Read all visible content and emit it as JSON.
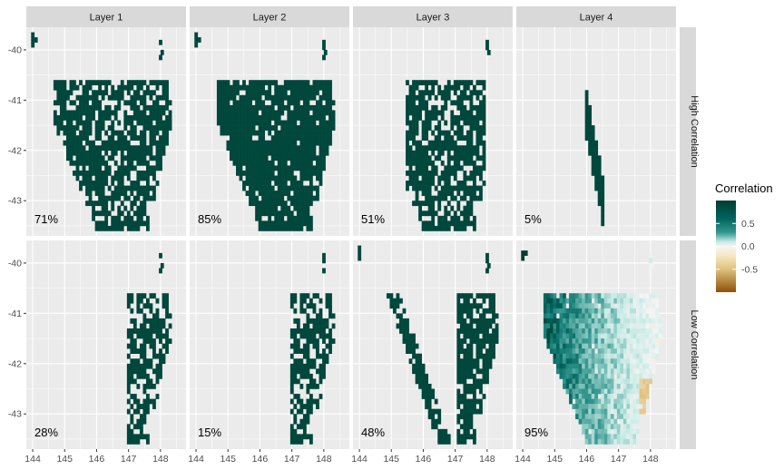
{
  "colors": {
    "panel_bg": "#ebebeb",
    "grid": "#ffffff",
    "strip_bg": "#d9d9d9",
    "high": "#003c30",
    "mid_high": "#35978f",
    "light_teal": "#c7eae5",
    "zero": "#f5f5f5",
    "light_brown": "#dfc27d",
    "low": "#8c510a"
  },
  "chart_data": {
    "type": "heatmap",
    "facet_columns": [
      "Layer 1",
      "Layer 2",
      "Layer 3",
      "Layer 4"
    ],
    "facet_rows": [
      "High Correlation",
      "Low Correlation"
    ],
    "xlim": [
      143.8,
      148.8
    ],
    "ylim": [
      -43.7,
      -39.55
    ],
    "x_ticks": [
      144,
      145,
      146,
      147,
      148
    ],
    "y_ticks": [
      -40,
      -41,
      -42,
      -43
    ],
    "x_tick_labels": [
      "144",
      "145",
      "146",
      "147",
      "148"
    ],
    "y_tick_labels": [
      "-40",
      "-41",
      "-42",
      "-43"
    ],
    "panels": [
      {
        "row": 0,
        "col": 0,
        "percent_label": "71%",
        "share": 0.71,
        "region": "all",
        "corr": 0.95
      },
      {
        "row": 0,
        "col": 1,
        "percent_label": "85%",
        "share": 0.85,
        "region": "all",
        "corr": 0.95
      },
      {
        "row": 0,
        "col": 2,
        "percent_label": "51%",
        "share": 0.51,
        "region": "center",
        "corr": 0.95
      },
      {
        "row": 0,
        "col": 3,
        "percent_label": "5%",
        "share": 0.05,
        "region": "strip",
        "corr": 0.95
      },
      {
        "row": 1,
        "col": 0,
        "percent_label": "28%",
        "share": 0.28,
        "region": "east",
        "corr": 0.95
      },
      {
        "row": 1,
        "col": 1,
        "percent_label": "15%",
        "share": 0.15,
        "region": "east",
        "corr": 0.95
      },
      {
        "row": 1,
        "col": 2,
        "percent_label": "48%",
        "share": 0.48,
        "region": "vshape",
        "corr": 0.95
      },
      {
        "row": 1,
        "col": 3,
        "percent_label": "95%",
        "share": 0.95,
        "region": "gradient",
        "corr": 0.6
      }
    ],
    "legend": {
      "title": "Correlation",
      "limits": [
        -1,
        1
      ],
      "ticks": [
        0.5,
        0.0,
        -0.5
      ],
      "tick_labels": [
        "0.5",
        "0.0",
        "-0.5"
      ],
      "placement": "right"
    },
    "grid": true
  }
}
